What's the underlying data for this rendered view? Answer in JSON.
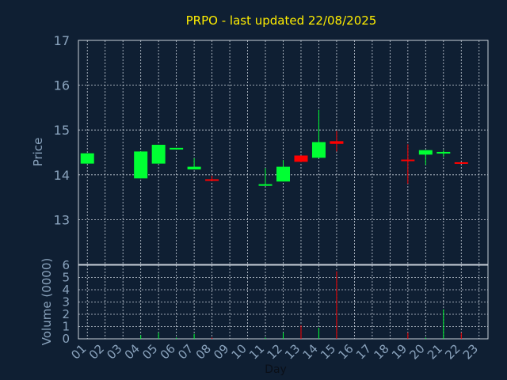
{
  "chart_data": {
    "type": "candlestick",
    "title": "PRPO - last updated 22/08/2025",
    "xlabel": "Day",
    "x_ticks": [
      "01",
      "02",
      "03",
      "04",
      "05",
      "06",
      "07",
      "08",
      "09",
      "10",
      "11",
      "12",
      "13",
      "14",
      "15",
      "16",
      "17",
      "18",
      "19",
      "20",
      "21",
      "22",
      "23"
    ],
    "price_panel": {
      "ylabel": "Price",
      "ylim": [
        12.0,
        17.0
      ],
      "y_ticks": [
        "13",
        "14",
        "15",
        "16",
        "17"
      ]
    },
    "volume_panel": {
      "ylabel": "Volume (0000)",
      "ylim": [
        0,
        6
      ],
      "y_ticks": [
        "0",
        "1",
        "2",
        "3",
        "4",
        "5",
        "6"
      ]
    },
    "colors": {
      "up": "#00ff33",
      "down": "#ff0000",
      "title": "#ffee00",
      "tick": "#8aa3bd",
      "background": "#0f1f33"
    },
    "candles": [
      {
        "day": "01",
        "open": 14.25,
        "close": 14.48,
        "high": 14.48,
        "low": 14.25,
        "volume": 0.0
      },
      {
        "day": "04",
        "open": 13.92,
        "close": 14.52,
        "high": 14.52,
        "low": 13.92,
        "volume": 0.3
      },
      {
        "day": "05",
        "open": 14.25,
        "close": 14.67,
        "high": 14.67,
        "low": 14.25,
        "volume": 0.5
      },
      {
        "day": "06",
        "open": 14.57,
        "close": 14.6,
        "high": 14.6,
        "low": 14.57,
        "volume": 0.1
      },
      {
        "day": "07",
        "open": 14.12,
        "close": 14.18,
        "high": 14.37,
        "low": 14.12,
        "volume": 0.4
      },
      {
        "day": "08",
        "open": 13.9,
        "close": 13.88,
        "high": 13.98,
        "low": 13.86,
        "volume": 0.1
      },
      {
        "day": "11",
        "open": 13.78,
        "close": 13.79,
        "high": 14.15,
        "low": 13.78,
        "volume": 0.1
      },
      {
        "day": "12",
        "open": 13.85,
        "close": 14.18,
        "high": 14.33,
        "low": 13.85,
        "volume": 0.5
      },
      {
        "day": "13",
        "open": 14.43,
        "close": 14.29,
        "high": 14.43,
        "low": 14.28,
        "volume": 1.1
      },
      {
        "day": "14",
        "open": 14.38,
        "close": 14.73,
        "high": 15.45,
        "low": 14.38,
        "volume": 0.9
      },
      {
        "day": "15",
        "open": 14.75,
        "close": 14.69,
        "high": 14.98,
        "low": 14.52,
        "volume": 5.5
      },
      {
        "day": "19",
        "open": 14.34,
        "close": 14.32,
        "high": 14.68,
        "low": 13.8,
        "volume": 0.5
      },
      {
        "day": "20",
        "open": 14.45,
        "close": 14.55,
        "high": 14.55,
        "low": 14.22,
        "volume": 0.1
      },
      {
        "day": "21",
        "open": 14.48,
        "close": 14.51,
        "high": 14.55,
        "low": 14.4,
        "volume": 2.4
      },
      {
        "day": "22",
        "open": 14.28,
        "close": 14.27,
        "high": 14.28,
        "low": 14.26,
        "volume": 0.5
      }
    ]
  }
}
